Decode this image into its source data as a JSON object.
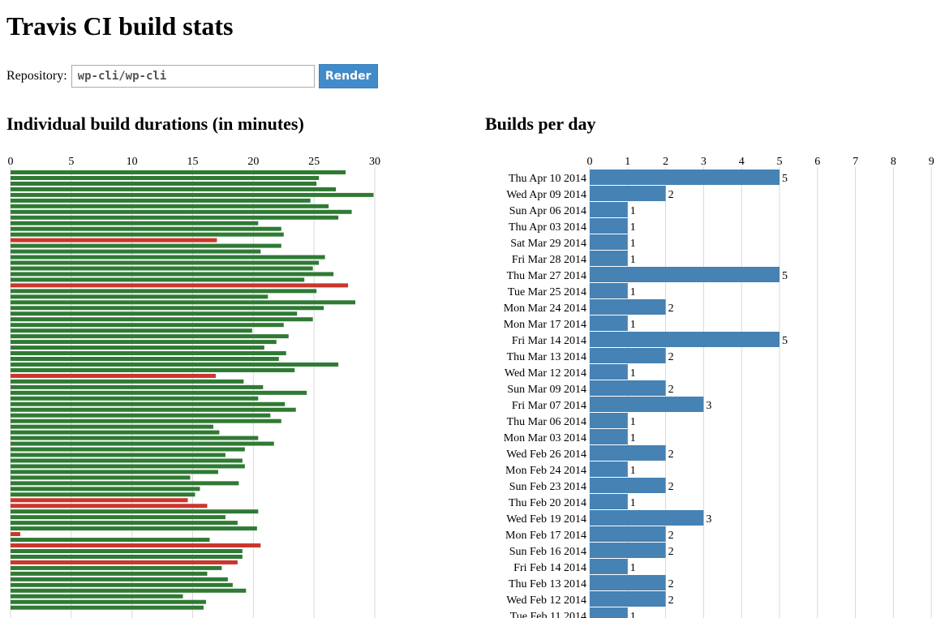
{
  "page": {
    "title": "Travis CI build stats"
  },
  "form": {
    "label": "Repository:",
    "value": "wp-cli/wp-cli",
    "button": "Render"
  },
  "colors": {
    "passed": "#2f7a34",
    "failed": "#c9372c",
    "builds_bar": "#4682b4",
    "grid": "#d9d9d9"
  },
  "chart_data": [
    {
      "type": "bar",
      "orientation": "horizontal",
      "title": "Individual build durations (in minutes)",
      "xlim": [
        0,
        30
      ],
      "xticks": [
        0,
        5,
        10,
        15,
        20,
        25,
        30
      ],
      "grid": true,
      "values": [
        27.6,
        25.4,
        25.2,
        26.8,
        29.9,
        24.7,
        26.2,
        28.1,
        27.0,
        20.4,
        22.3,
        22.5,
        17.0,
        22.3,
        20.6,
        25.9,
        25.4,
        24.9,
        26.6,
        24.2,
        27.8,
        25.2,
        21.2,
        28.4,
        25.8,
        23.6,
        24.9,
        22.5,
        19.9,
        22.9,
        21.9,
        20.9,
        22.7,
        22.1,
        27.0,
        23.4,
        16.9,
        19.2,
        20.8,
        24.4,
        20.4,
        22.6,
        23.5,
        21.4,
        22.3,
        16.7,
        17.2,
        20.4,
        21.7,
        19.3,
        17.7,
        19.1,
        19.3,
        17.1,
        14.8,
        18.8,
        15.6,
        15.2,
        14.6,
        16.2,
        20.4,
        17.7,
        18.7,
        20.3,
        0.8,
        16.4,
        20.6,
        19.1,
        19.1,
        18.7,
        17.4,
        16.2,
        17.9,
        18.3,
        19.4,
        14.2,
        16.1,
        15.9
      ],
      "status": [
        "passed",
        "passed",
        "passed",
        "passed",
        "passed",
        "passed",
        "passed",
        "passed",
        "passed",
        "passed",
        "passed",
        "passed",
        "failed",
        "passed",
        "passed",
        "passed",
        "passed",
        "passed",
        "passed",
        "passed",
        "failed",
        "passed",
        "passed",
        "passed",
        "passed",
        "passed",
        "passed",
        "passed",
        "passed",
        "passed",
        "passed",
        "passed",
        "passed",
        "passed",
        "passed",
        "passed",
        "failed",
        "passed",
        "passed",
        "passed",
        "passed",
        "passed",
        "passed",
        "passed",
        "passed",
        "passed",
        "passed",
        "passed",
        "passed",
        "passed",
        "passed",
        "passed",
        "passed",
        "passed",
        "passed",
        "passed",
        "passed",
        "passed",
        "failed",
        "failed",
        "passed",
        "passed",
        "passed",
        "passed",
        "failed",
        "passed",
        "failed",
        "passed",
        "passed",
        "failed",
        "passed",
        "passed",
        "passed",
        "passed",
        "passed",
        "passed",
        "passed",
        "passed"
      ]
    },
    {
      "type": "bar",
      "orientation": "horizontal",
      "title": "Builds per day",
      "xlim": [
        0,
        9
      ],
      "xticks": [
        0,
        1,
        2,
        3,
        4,
        5,
        6,
        7,
        8,
        9
      ],
      "grid": true,
      "categories": [
        "Thu Apr 10 2014",
        "Wed Apr 09 2014",
        "Sun Apr 06 2014",
        "Thu Apr 03 2014",
        "Sat Mar 29 2014",
        "Fri Mar 28 2014",
        "Thu Mar 27 2014",
        "Tue Mar 25 2014",
        "Mon Mar 24 2014",
        "Mon Mar 17 2014",
        "Fri Mar 14 2014",
        "Thu Mar 13 2014",
        "Wed Mar 12 2014",
        "Sun Mar 09 2014",
        "Fri Mar 07 2014",
        "Thu Mar 06 2014",
        "Mon Mar 03 2014",
        "Wed Feb 26 2014",
        "Mon Feb 24 2014",
        "Sun Feb 23 2014",
        "Thu Feb 20 2014",
        "Wed Feb 19 2014",
        "Mon Feb 17 2014",
        "Sun Feb 16 2014",
        "Fri Feb 14 2014",
        "Thu Feb 13 2014",
        "Wed Feb 12 2014",
        "Tue Feb 11 2014"
      ],
      "values": [
        5,
        2,
        1,
        1,
        1,
        1,
        5,
        1,
        2,
        1,
        5,
        2,
        1,
        2,
        3,
        1,
        1,
        2,
        1,
        2,
        1,
        3,
        2,
        2,
        1,
        2,
        2,
        1
      ]
    }
  ]
}
